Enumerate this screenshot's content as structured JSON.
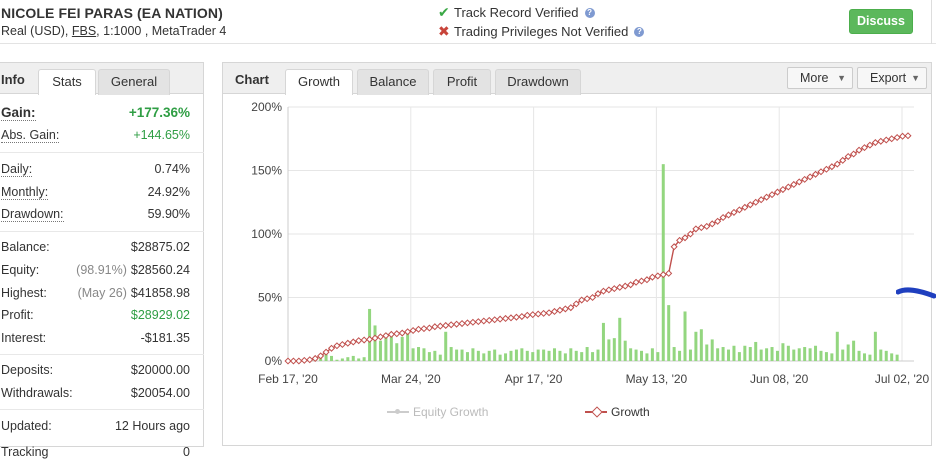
{
  "header": {
    "account_name": "NICOLE FEI PARAS (EA NATION)",
    "account_type": "Real (USD),",
    "broker": "FBS",
    "details": ", 1:1000 , MetaTrader 4",
    "track_record": "Track Record Verified",
    "trading_privileges": "Trading Privileges Not Verified",
    "discuss_label": "Discuss"
  },
  "info": {
    "title": "Info",
    "tabs": [
      "Stats",
      "General"
    ],
    "gain": {
      "label": "Gain:",
      "value": "+177.36%"
    },
    "abs_gain": {
      "label": "Abs. Gain:",
      "value": "+144.65%"
    },
    "daily": {
      "label": "Daily:",
      "value": "0.74%"
    },
    "monthly": {
      "label": "Monthly:",
      "value": "24.92%"
    },
    "drawdown": {
      "label": "Drawdown:",
      "value": "59.90%"
    },
    "balance": {
      "label": "Balance:",
      "value": "$28875.02"
    },
    "equity": {
      "label": "Equity:",
      "pre": "(98.91%)",
      "value": "$28560.24"
    },
    "highest": {
      "label": "Highest:",
      "pre": "(May 26)",
      "value": "$41858.98"
    },
    "profit": {
      "label": "Profit:",
      "value": "$28929.02"
    },
    "interest": {
      "label": "Interest:",
      "value": "-$181.35"
    },
    "deposits": {
      "label": "Deposits:",
      "value": "$20000.00"
    },
    "withdrawals": {
      "label": "Withdrawals:",
      "value": "$20054.00"
    },
    "updated": {
      "label": "Updated:",
      "value": "12 Hours ago"
    },
    "tracking": {
      "label": "Tracking",
      "value": "0"
    }
  },
  "chart_panel": {
    "title": "Chart",
    "tabs": [
      "Growth",
      "Balance",
      "Profit",
      "Drawdown"
    ],
    "more_label": "More",
    "export_label": "Export",
    "legend_equity": "Equity Growth",
    "legend_growth": "Growth"
  },
  "colors": {
    "green_bar": "#93d67f",
    "growth_line": "#c0504d",
    "positive": "#2f9e44",
    "annotation": "#1f3fbf"
  },
  "chart_data": {
    "type": "line",
    "ylim": [
      0,
      200
    ],
    "y_ticks": [
      "0%",
      "50%",
      "100%",
      "150%",
      "200%"
    ],
    "x_ticks": [
      "Feb 17, '20",
      "Mar 24, '20",
      "Apr 17, '20",
      "May 13, '20",
      "Jun 08, '20",
      "Jul 02, '20"
    ],
    "series": [
      {
        "name": "Growth",
        "values": [
          0,
          0,
          0,
          0.5,
          1,
          2,
          4,
          7,
          10,
          12,
          13,
          14,
          15,
          16,
          16.5,
          17,
          18,
          19,
          20,
          21,
          21.5,
          22,
          23,
          24,
          25,
          25.5,
          26,
          27,
          27.5,
          28,
          28.5,
          29,
          29.5,
          30,
          30.5,
          31,
          31.5,
          32,
          32.5,
          33,
          33.5,
          34,
          34.5,
          35,
          36,
          36.5,
          37,
          37.5,
          38,
          39,
          40,
          41,
          42,
          45,
          48,
          49,
          50,
          53,
          55,
          56,
          57,
          58,
          59,
          60,
          62,
          63,
          64,
          66,
          67,
          68,
          69,
          90,
          95,
          97,
          100,
          104,
          105,
          106,
          108,
          110,
          113,
          115,
          117,
          119,
          121,
          123,
          125,
          127,
          129,
          131,
          133,
          135,
          137,
          139,
          141,
          143,
          145,
          147,
          149,
          151,
          153,
          155,
          158,
          161,
          163,
          166,
          168,
          170,
          172,
          173,
          174,
          175,
          176,
          177,
          177.36
        ]
      },
      {
        "name": "Daily bars",
        "values": [
          0,
          0,
          0,
          0,
          0,
          1,
          2,
          8,
          4,
          1,
          2,
          3,
          4,
          2,
          3,
          41,
          28,
          16,
          22,
          21,
          14,
          19,
          22,
          10,
          11,
          10,
          7,
          8,
          5,
          23,
          11,
          9,
          9,
          7,
          10,
          8,
          6,
          8,
          9,
          5,
          6,
          8,
          9,
          10,
          8,
          7,
          9,
          9,
          8,
          10,
          8,
          6,
          10,
          8,
          7,
          11,
          7,
          9,
          30,
          17,
          18,
          34,
          16,
          10,
          9,
          8,
          6,
          10,
          7,
          155,
          44,
          11,
          8,
          39,
          9,
          23,
          25,
          13,
          17,
          10,
          11,
          9,
          12,
          7,
          12,
          11,
          15,
          9,
          10,
          11,
          8,
          14,
          12,
          9,
          10,
          11,
          10,
          12,
          8,
          7,
          6,
          23,
          9,
          13,
          16,
          8,
          6,
          5,
          23,
          9,
          8,
          6,
          5
        ]
      }
    ],
    "grid": true,
    "legend": "bottom"
  }
}
